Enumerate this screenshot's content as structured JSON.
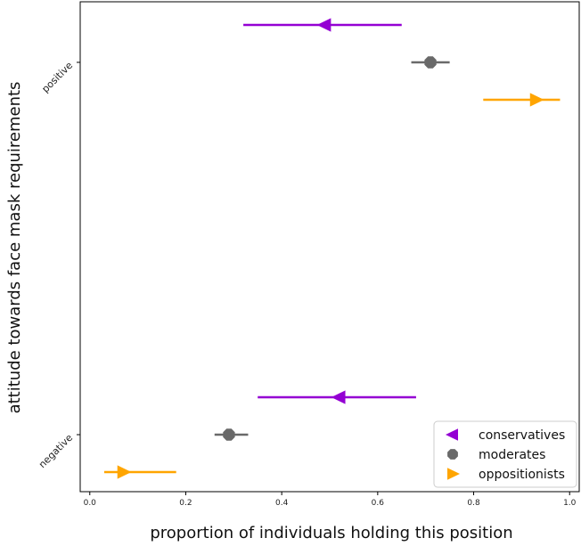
{
  "chart_data": {
    "type": "scatter",
    "xlabel": "proportion of individuals holding this position",
    "ylabel": "attitude towards face mask requirements",
    "xlim": [
      -0.02,
      1.02
    ],
    "xticks": [
      "0.0",
      "0.2",
      "0.4",
      "0.6",
      "0.8",
      "1.0"
    ],
    "categories": [
      "positive",
      "negative"
    ],
    "legend_position": "bottom-right",
    "grid": false,
    "series": [
      {
        "name": "conservatives",
        "marker": "triangle-left",
        "color": "#9400d3",
        "points": [
          {
            "category": "positive",
            "x": 0.49,
            "ci": [
              0.32,
              0.65
            ]
          },
          {
            "category": "negative",
            "x": 0.52,
            "ci": [
              0.35,
              0.68
            ]
          }
        ]
      },
      {
        "name": "moderates",
        "marker": "octagon",
        "color": "#696969",
        "points": [
          {
            "category": "positive",
            "x": 0.71,
            "ci": [
              0.67,
              0.75
            ]
          },
          {
            "category": "negative",
            "x": 0.29,
            "ci": [
              0.26,
              0.33
            ]
          }
        ]
      },
      {
        "name": "oppositionists",
        "marker": "triangle-right",
        "color": "#ffa500",
        "points": [
          {
            "category": "positive",
            "x": 0.93,
            "ci": [
              0.82,
              0.98
            ]
          },
          {
            "category": "negative",
            "x": 0.07,
            "ci": [
              0.03,
              0.18
            ]
          }
        ]
      }
    ]
  }
}
